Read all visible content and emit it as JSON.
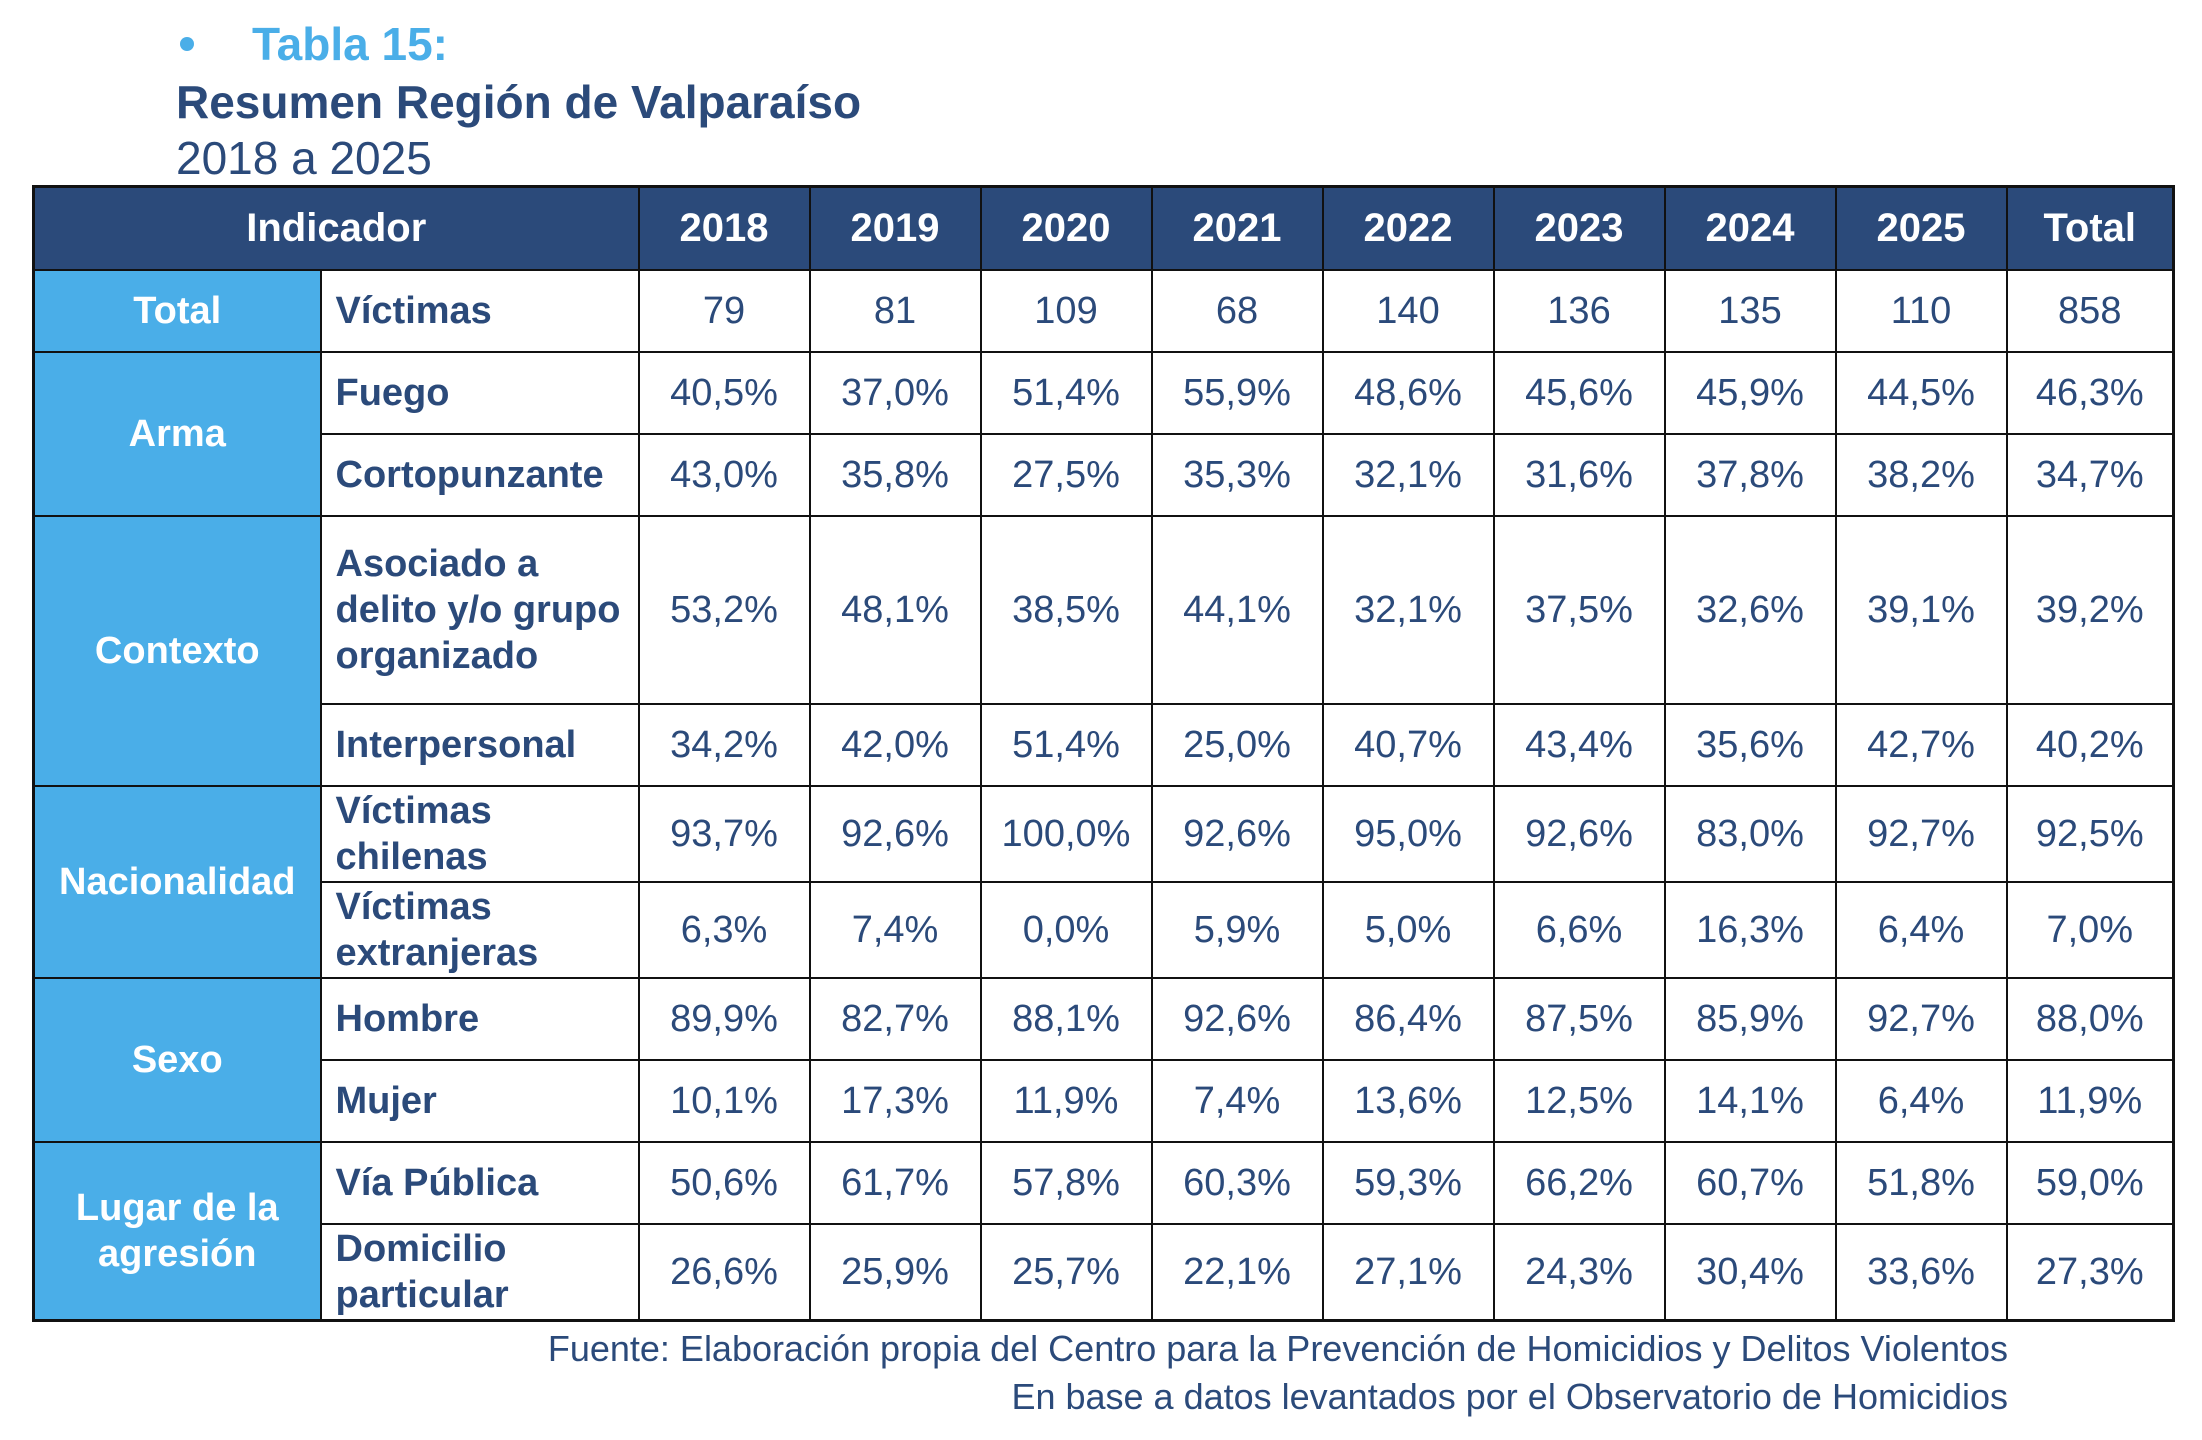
{
  "heading": {
    "table_number": "Tabla 15:",
    "title": "Resumen Región de Valparaíso",
    "subtitle": "2018 a 2025"
  },
  "table": {
    "indicator_header": "Indicador",
    "year_headers": [
      "2018",
      "2019",
      "2020",
      "2021",
      "2022",
      "2023",
      "2024",
      "2025",
      "Total"
    ],
    "groups": [
      {
        "name": "Total",
        "rows": [
          {
            "label": "Víctimas",
            "values": [
              "79",
              "81",
              "109",
              "68",
              "140",
              "136",
              "135",
              "110",
              "858"
            ]
          }
        ]
      },
      {
        "name": "Arma",
        "rows": [
          {
            "label": "Fuego",
            "values": [
              "40,5%",
              "37,0%",
              "51,4%",
              "55,9%",
              "48,6%",
              "45,6%",
              "45,9%",
              "44,5%",
              "46,3%"
            ]
          },
          {
            "label": "Cortopunzante",
            "values": [
              "43,0%",
              "35,8%",
              "27,5%",
              "35,3%",
              "32,1%",
              "31,6%",
              "37,8%",
              "38,2%",
              "34,7%"
            ]
          }
        ]
      },
      {
        "name": "Contexto",
        "rows": [
          {
            "label": "Asociado a delito y/o grupo organizado",
            "values": [
              "53,2%",
              "48,1%",
              "38,5%",
              "44,1%",
              "32,1%",
              "37,5%",
              "32,6%",
              "39,1%",
              "39,2%"
            ]
          },
          {
            "label": "Interpersonal",
            "values": [
              "34,2%",
              "42,0%",
              "51,4%",
              "25,0%",
              "40,7%",
              "43,4%",
              "35,6%",
              "42,7%",
              "40,2%"
            ]
          }
        ]
      },
      {
        "name": "Nacionalidad",
        "rows": [
          {
            "label": "Víctimas chilenas",
            "values": [
              "93,7%",
              "92,6%",
              "100,0%",
              "92,6%",
              "95,0%",
              "92,6%",
              "83,0%",
              "92,7%",
              "92,5%"
            ]
          },
          {
            "label": "Víctimas extranjeras",
            "values": [
              "6,3%",
              "7,4%",
              "0,0%",
              "5,9%",
              "5,0%",
              "6,6%",
              "16,3%",
              "6,4%",
              "7,0%"
            ]
          }
        ]
      },
      {
        "name": "Sexo",
        "rows": [
          {
            "label": "Hombre",
            "values": [
              "89,9%",
              "82,7%",
              "88,1%",
              "92,6%",
              "86,4%",
              "87,5%",
              "85,9%",
              "92,7%",
              "88,0%"
            ]
          },
          {
            "label": "Mujer",
            "values": [
              "10,1%",
              "17,3%",
              "11,9%",
              "7,4%",
              "13,6%",
              "12,5%",
              "14,1%",
              "6,4%",
              "11,9%"
            ]
          }
        ]
      },
      {
        "name": "Lugar de la agresión",
        "rows": [
          {
            "label": "Vía Pública",
            "values": [
              "50,6%",
              "61,7%",
              "57,8%",
              "60,3%",
              "59,3%",
              "66,2%",
              "60,7%",
              "51,8%",
              "59,0%"
            ]
          },
          {
            "label": "Domicilio particular",
            "values": [
              "26,6%",
              "25,9%",
              "25,7%",
              "22,1%",
              "27,1%",
              "24,3%",
              "30,4%",
              "33,6%",
              "27,3%"
            ]
          }
        ]
      }
    ]
  },
  "source": {
    "line1": "Fuente: Elaboración propia del Centro para la Prevención de Homicidios y Delitos Violentos",
    "line2": "En base a datos levantados por el Observatorio de Homicidios"
  },
  "colors": {
    "header_navy": "#2b4a7a",
    "group_blue": "#4aaee8",
    "text_navy": "#2b4a7a"
  }
}
